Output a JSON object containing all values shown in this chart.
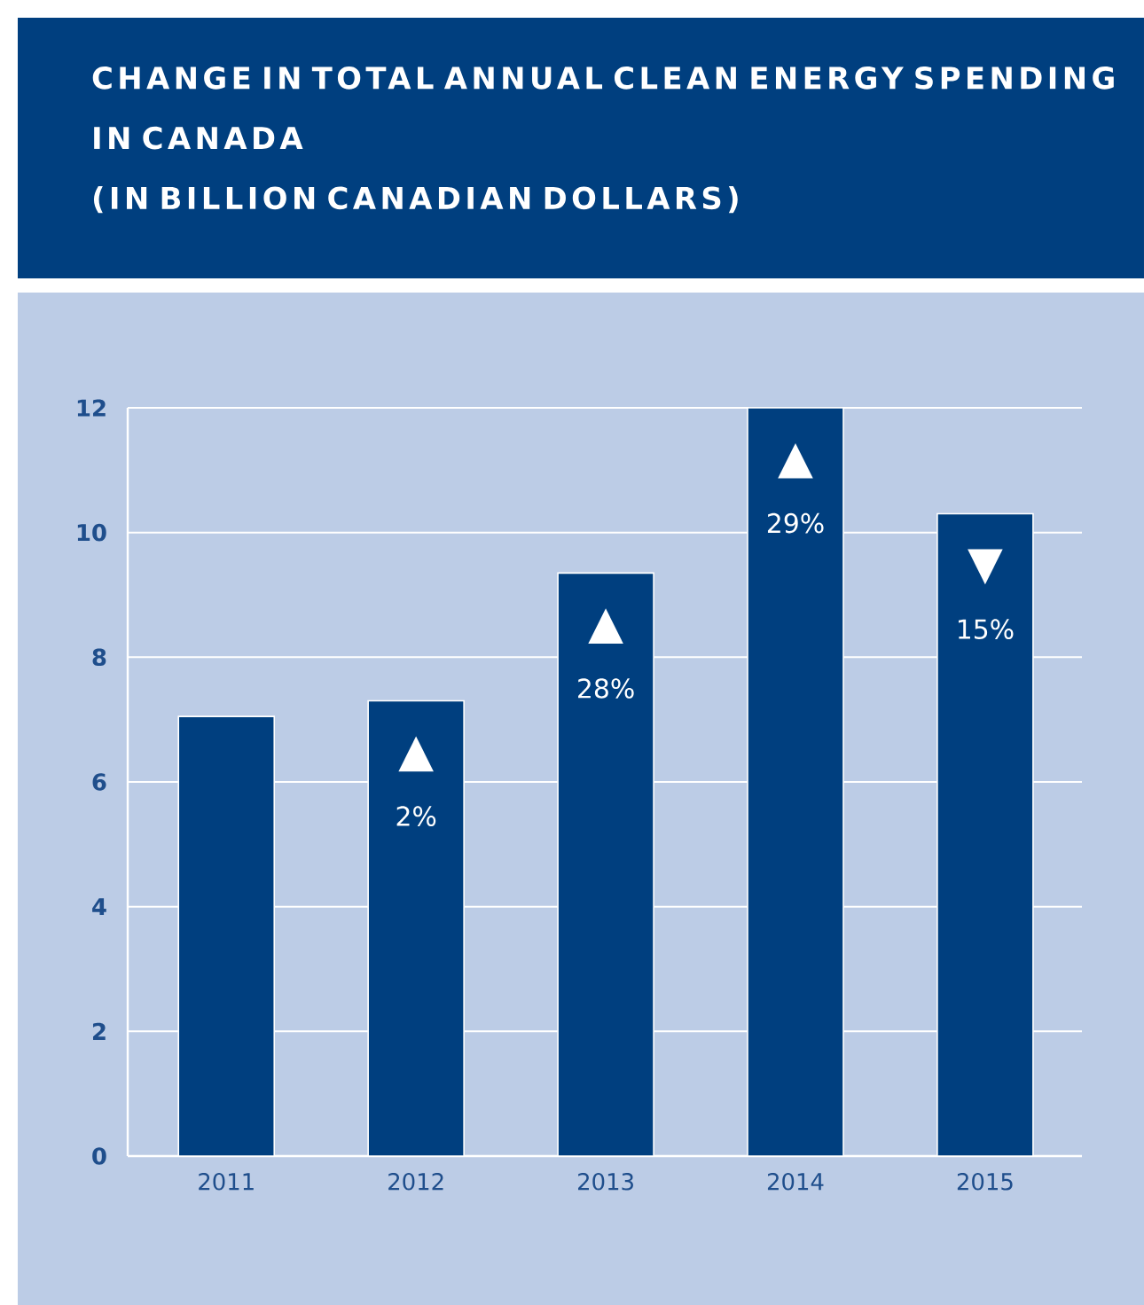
{
  "chart_data": {
    "type": "bar",
    "title": "CHANGE IN TOTAL ANNUAL CLEAN ENERGY SPENDING IN CANADA",
    "subtitle": "(IN BILLION CANADIAN DOLLARS)",
    "categories": [
      "2011",
      "2012",
      "2013",
      "2014",
      "2015"
    ],
    "values": [
      7.05,
      7.3,
      9.35,
      12.0,
      10.3
    ],
    "color": "#003f7f",
    "ylim": [
      0,
      12
    ],
    "yticks": [
      0,
      2,
      4,
      6,
      8,
      10,
      12
    ],
    "grid": "y",
    "annotations": [
      "▲",
      "2%",
      "▲",
      "28%",
      "▲",
      "29%",
      "▼",
      "15%"
    ]
  }
}
